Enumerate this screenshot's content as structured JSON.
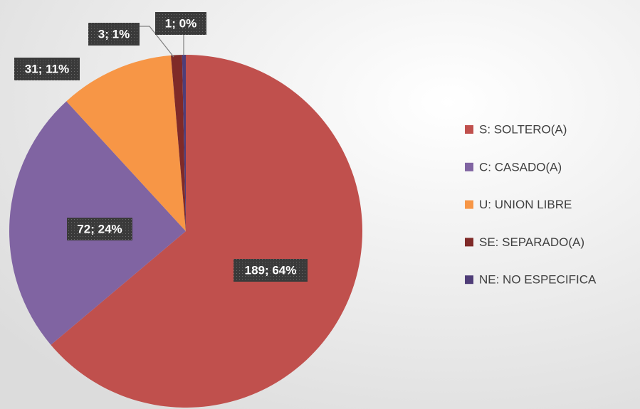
{
  "chart_data": {
    "type": "pie",
    "categories": [
      "S: SOLTERO(A)",
      "C: CASADO(A)",
      "U: UNION LIBRE",
      "SE: SEPARADO(A)",
      "NE: NO ESPECIFICA"
    ],
    "values": [
      189,
      72,
      31,
      3,
      1
    ],
    "value_labels": [
      "189; 64%",
      "72; 24%",
      "31; 11%",
      "3; 1%",
      "1; 0%"
    ],
    "colors": [
      "#c0504d",
      "#8064a2",
      "#f79646",
      "#7f2a28",
      "#4f3d78"
    ],
    "legend": "right"
  }
}
